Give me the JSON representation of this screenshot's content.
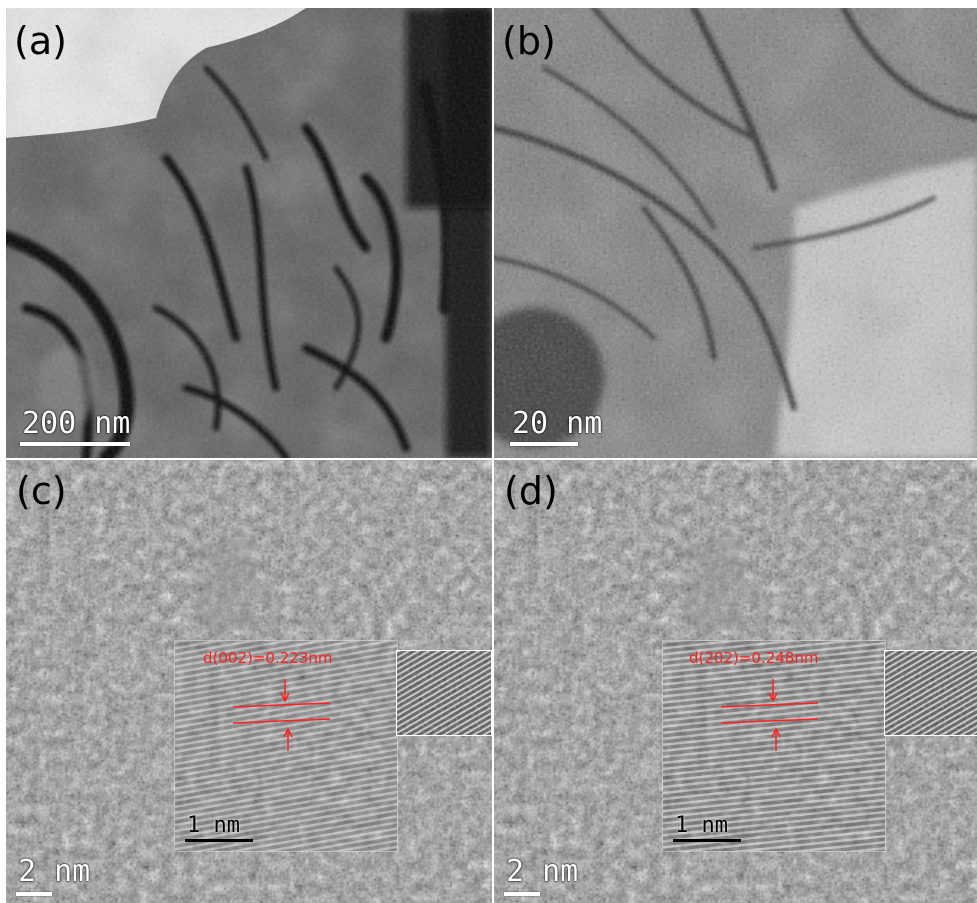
{
  "panels": {
    "a": {
      "label": "(a)",
      "scale": "200 nm"
    },
    "b": {
      "label": "(b)",
      "scale": "20 nm"
    },
    "c": {
      "label": "(c)",
      "scale": "2 nm",
      "inset_scale": "1 nm",
      "d_spacing": "d(002)=0.223nm"
    },
    "d": {
      "label": "(d)",
      "scale": "2 nm",
      "inset_scale": "1 nm",
      "d_spacing": "d(202)=0.248nm"
    }
  },
  "colors": {
    "annotation": "#ff2020",
    "scalebar": "#ffffff"
  }
}
